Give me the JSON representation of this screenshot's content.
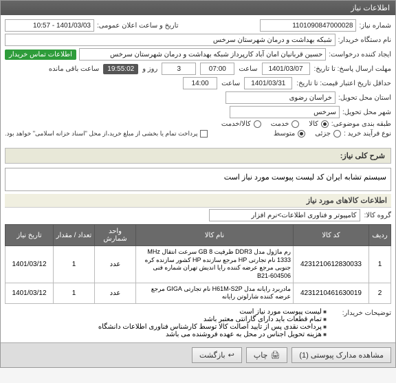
{
  "panel": {
    "title": "اطلاعات نیاز"
  },
  "form": {
    "need_no_label": "شماره نیاز:",
    "need_no": "1101090847000028",
    "announce_label": "تاریخ و ساعت اعلان عمومی:",
    "announce_value": "1401/03/03 - 10:57",
    "buyer_org_label": "نام دستگاه خریدار:",
    "buyer_org": "شبکه بهداشت و درمان شهرستان سرخس",
    "requester_label": "ایجاد کننده درخواست:",
    "requester": "حسین قربانیان امان آباد کارپرداز شبکه بهداشت و درمان شهرستان سرخس",
    "contact_badge": "اطلاعات تماس خریدار",
    "reply_deadline_label": "مهلت ارسال پاسخ: تا تاریخ:",
    "reply_date": "1401/03/07",
    "time_label": "ساعت",
    "reply_time": "07:00",
    "days_label": "روز و",
    "days_value": "3",
    "remain_time": "19:55:02",
    "remain_suffix": "ساعت باقی مانده",
    "validity_label": "حداقل تاریخ اعتبار قیمت: تا تاریخ:",
    "validity_date": "1401/03/31",
    "validity_time": "14:00",
    "province_label": "استان محل تحویل:",
    "province": "خراسان رضوی",
    "city_label": "شهر محل تحویل:",
    "city": "سرخس",
    "category_label": "طبقه بندی موضوعی:",
    "cat_goods": "کالا",
    "cat_service": "خدمت",
    "cat_goods_service": "کالا/خدمت",
    "process_label": "نوع فرآیند خرید :",
    "proc_low": "جزئی",
    "proc_mid": "متوسط",
    "payment_note": "پرداخت تمام یا بخشی از مبلغ خرید،از محل \"اسناد خزانه اسلامی\" خواهد بود."
  },
  "desc": {
    "header_label": "شرح کلی نیاز:",
    "text": "سیستم تشابه ایران کد لیست پیوست مورد نیاز است"
  },
  "goods": {
    "section_title": "اطلاعات کالاهای مورد نیاز",
    "group_label": "گروه کالا:",
    "group_value": "کامپیوتر و فناوری اطلاعات>نرم افزار",
    "columns": {
      "row": "ردیف",
      "code": "کد کالا",
      "name": "نام کالا",
      "unit": "واحد شمارش",
      "qty": "تعداد / مقدار",
      "date": "تاریخ نیاز"
    },
    "rows": [
      {
        "idx": "1",
        "code": "4231210612830033",
        "name": "رم ماژول مدل DDR3 ظرفیت GB 8 سرعت انتقال MHz 1333 نام تجارتی HP مرجع سازنده HP کشور سازنده کره جنوبی مرجع عرضه کننده رایا اندیش تهران شماره فنی B21-604506",
        "unit": "عدد",
        "qty": "1",
        "date": "1401/03/12"
      },
      {
        "idx": "2",
        "code": "4231210461630019",
        "name": "مادربرد رایانه مدل H61M-S2P نام تجارتی GIGA مرجع عرضه کننده شارلوتن رایانه",
        "unit": "عدد",
        "qty": "1",
        "date": "1401/03/12"
      }
    ]
  },
  "buyer_notes": {
    "label": "توضیحات خریدار:",
    "items": [
      "لیست پیوست مورد نیاز است",
      "تمام قطعات باید دارای گارانتی معتبر باشد",
      "پرداخت نقدی پس از تایید اصالت کالا توسط کارشناس فناوری اطلاعات دانشگاه",
      "هزینه تحویل اجناس در محل به عهده فروشنده می باشد"
    ]
  },
  "footer": {
    "attachments": "مشاهده مدارک پیوستی (1)",
    "print": "چاپ",
    "back": "بازگشت"
  }
}
